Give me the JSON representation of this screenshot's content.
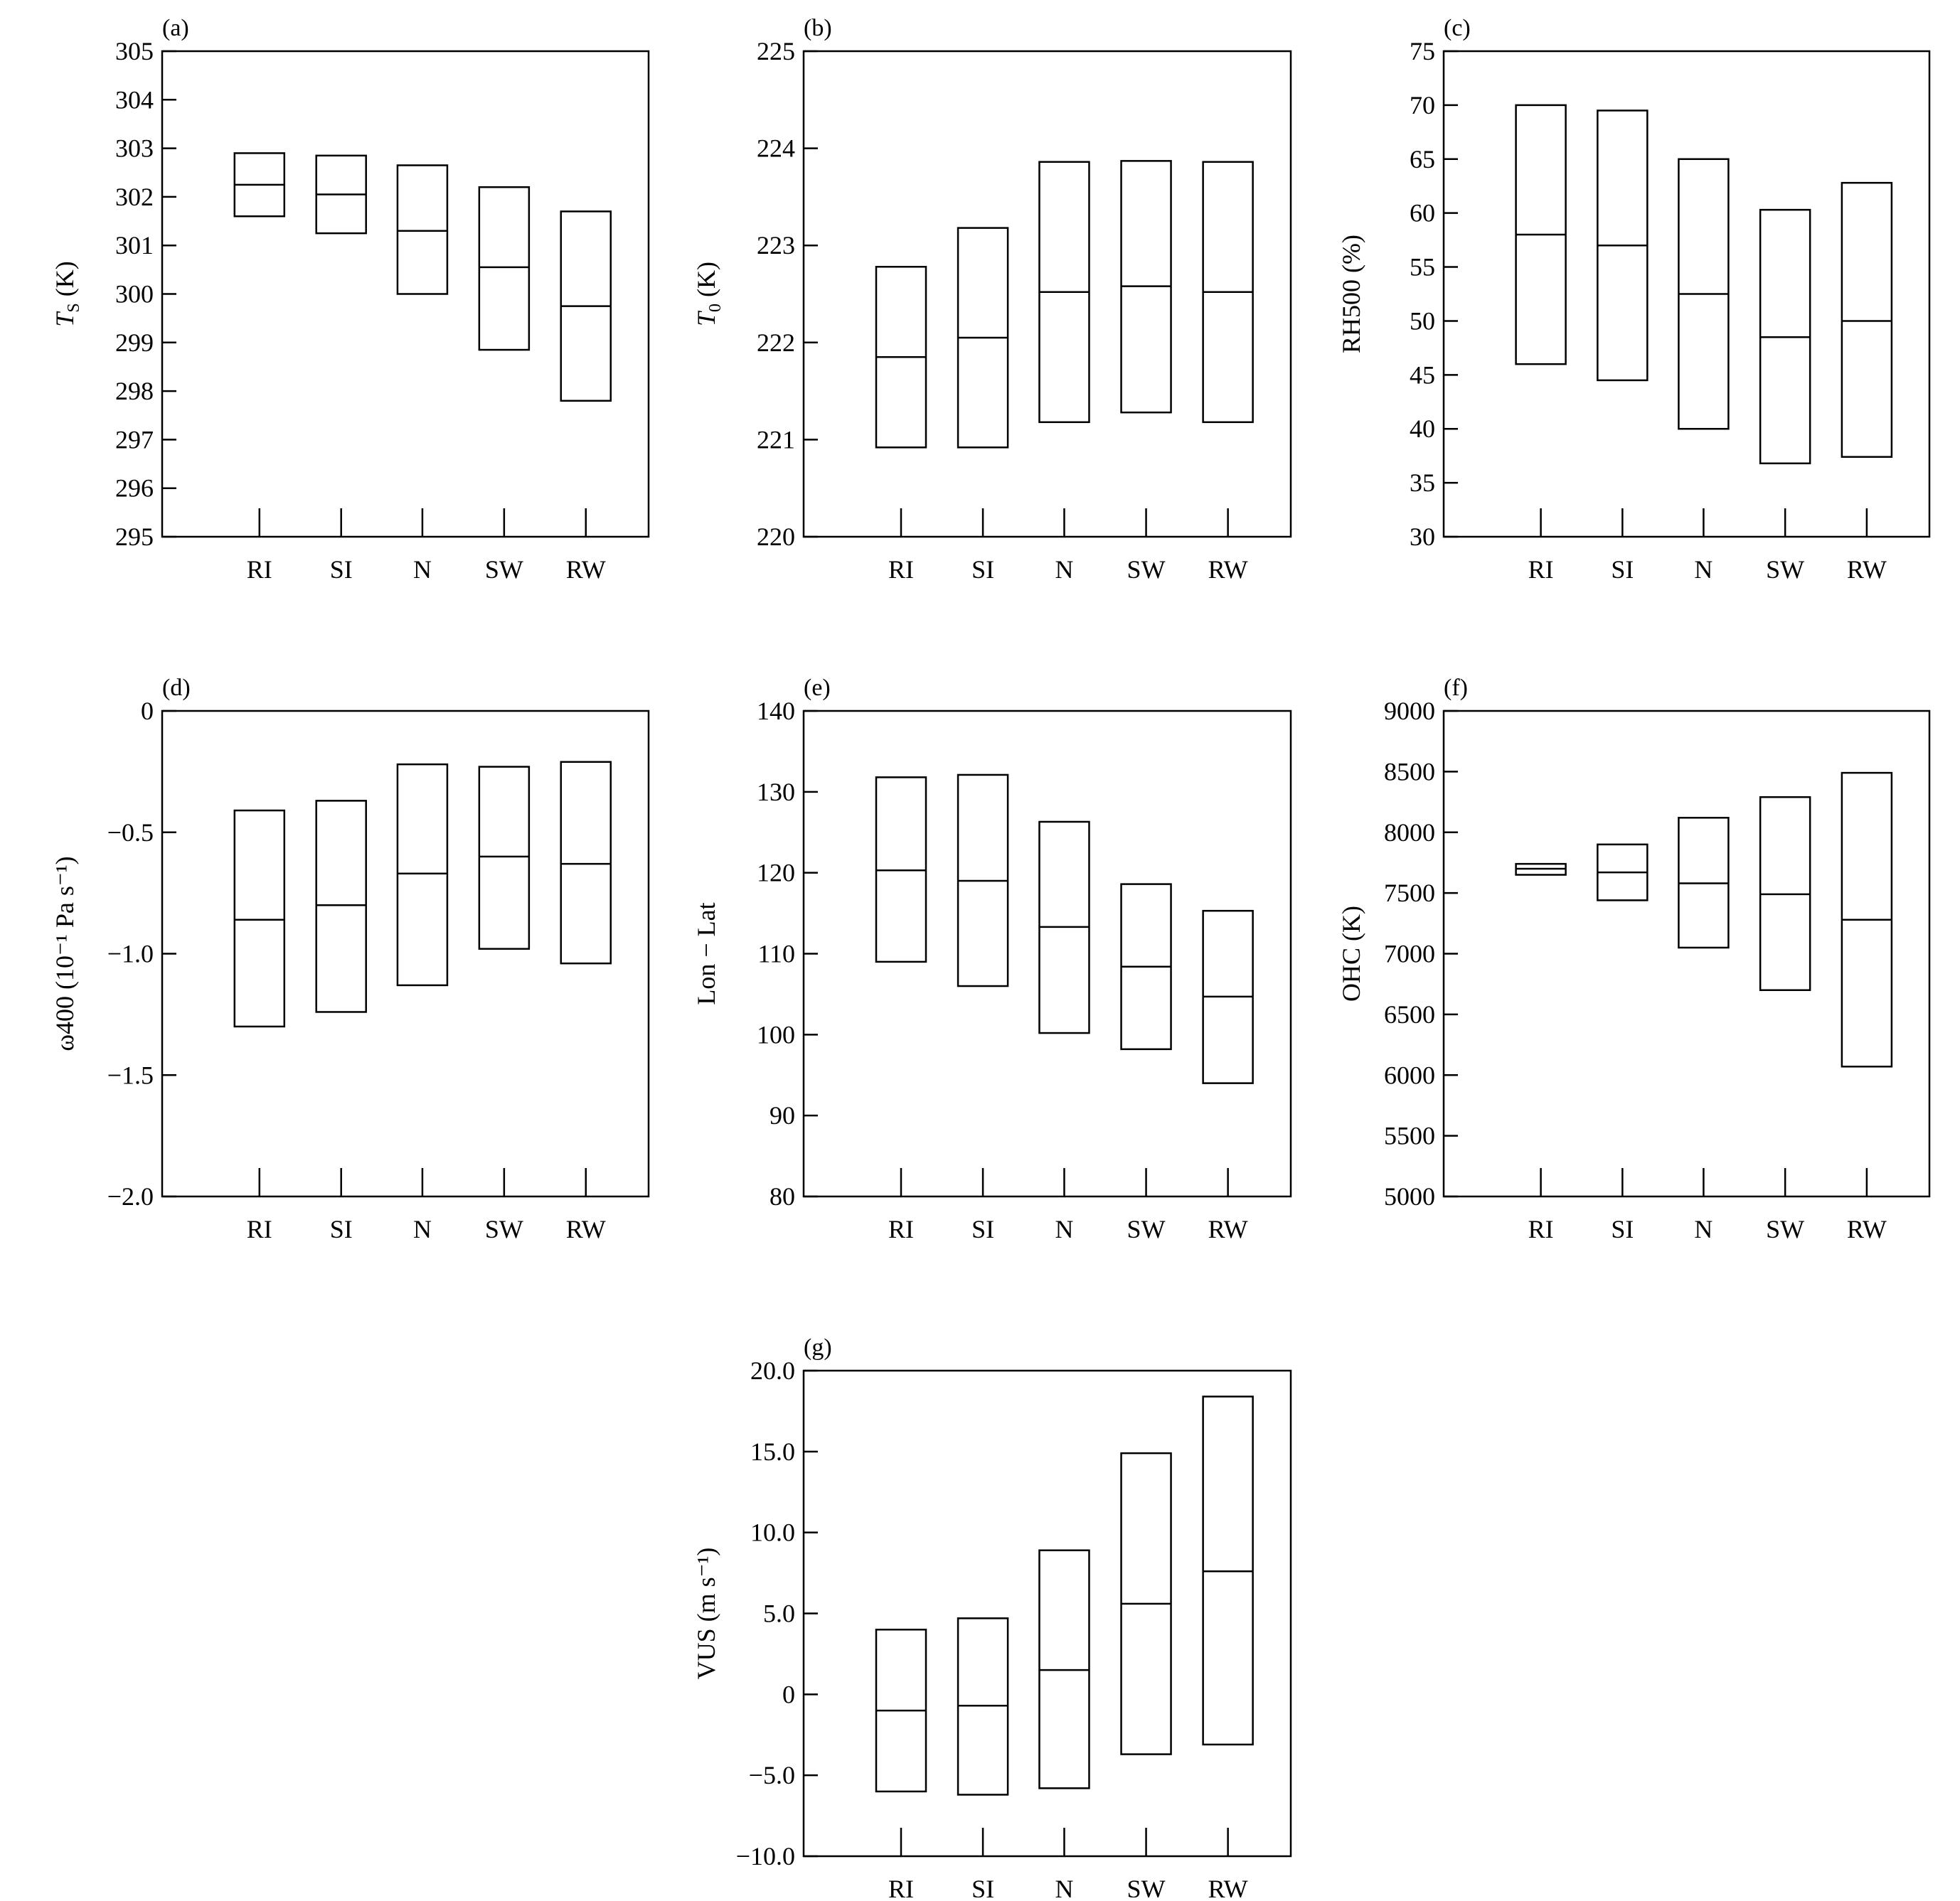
{
  "chart_data": [
    {
      "type": "box",
      "panel_label": "(a)",
      "ylabel": {
        "symbol": "T",
        "subscript": "S",
        "unit": " (K)"
      },
      "categories": [
        "RI",
        "SI",
        "N",
        "SW",
        "RW"
      ],
      "ylim": [
        295,
        305
      ],
      "yticks": [
        "295",
        "296",
        "297",
        "298",
        "299",
        "300",
        "301",
        "302",
        "303",
        "304",
        "305"
      ],
      "boxes": [
        {
          "low": 301.6,
          "median": 302.25,
          "high": 302.9
        },
        {
          "low": 301.25,
          "median": 302.05,
          "high": 302.85
        },
        {
          "low": 300.0,
          "median": 301.3,
          "high": 302.65
        },
        {
          "low": 298.85,
          "median": 300.55,
          "high": 302.2
        },
        {
          "low": 297.8,
          "median": 299.75,
          "high": 301.7
        }
      ]
    },
    {
      "type": "box",
      "panel_label": "(b)",
      "ylabel": {
        "symbol": "T",
        "subscript": "0",
        "unit": " (K)"
      },
      "categories": [
        "RI",
        "SI",
        "N",
        "SW",
        "RW"
      ],
      "ylim": [
        220,
        225
      ],
      "yticks": [
        "220",
        "221",
        "222",
        "223",
        "224",
        "225"
      ],
      "boxes": [
        {
          "low": 220.92,
          "median": 221.85,
          "high": 222.78
        },
        {
          "low": 220.92,
          "median": 222.05,
          "high": 223.18
        },
        {
          "low": 221.18,
          "median": 222.52,
          "high": 223.86
        },
        {
          "low": 221.28,
          "median": 222.58,
          "high": 223.87
        },
        {
          "low": 221.18,
          "median": 222.52,
          "high": 223.86
        }
      ]
    },
    {
      "type": "box",
      "panel_label": "(c)",
      "ylabel": {
        "text": "RH500 (%)"
      },
      "categories": [
        "RI",
        "SI",
        "N",
        "SW",
        "RW"
      ],
      "ylim": [
        30,
        75
      ],
      "yticks": [
        "30",
        "35",
        "40",
        "45",
        "50",
        "55",
        "60",
        "65",
        "70",
        "75"
      ],
      "boxes": [
        {
          "low": 46.0,
          "median": 58.0,
          "high": 70.0
        },
        {
          "low": 44.5,
          "median": 57.0,
          "high": 69.5
        },
        {
          "low": 40.0,
          "median": 52.5,
          "high": 65.0
        },
        {
          "low": 36.8,
          "median": 48.5,
          "high": 60.3
        },
        {
          "low": 37.4,
          "median": 50.0,
          "high": 62.8
        }
      ]
    },
    {
      "type": "box",
      "panel_label": "(d)",
      "ylabel": {
        "text": "ω400 (10⁻¹ Pa s⁻¹)"
      },
      "categories": [
        "RI",
        "SI",
        "N",
        "SW",
        "RW"
      ],
      "ylim": [
        -2.0,
        0
      ],
      "yticks": [
        "−2.0",
        "−1.5",
        "−1.0",
        "−0.5",
        "0"
      ],
      "boxes": [
        {
          "low": -1.3,
          "median": -0.86,
          "high": -0.41
        },
        {
          "low": -1.24,
          "median": -0.8,
          "high": -0.37
        },
        {
          "low": -1.13,
          "median": -0.67,
          "high": -0.22
        },
        {
          "low": -0.98,
          "median": -0.6,
          "high": -0.23
        },
        {
          "low": -1.04,
          "median": -0.63,
          "high": -0.21
        }
      ]
    },
    {
      "type": "box",
      "panel_label": "(e)",
      "ylabel": {
        "text": "Lon − Lat"
      },
      "categories": [
        "RI",
        "SI",
        "N",
        "SW",
        "RW"
      ],
      "ylim": [
        80,
        140
      ],
      "yticks": [
        "80",
        "90",
        "100",
        "110",
        "120",
        "130",
        "140"
      ],
      "boxes": [
        {
          "low": 109.0,
          "median": 120.3,
          "high": 131.8
        },
        {
          "low": 106.0,
          "median": 119.0,
          "high": 132.1
        },
        {
          "low": 100.2,
          "median": 113.3,
          "high": 126.3
        },
        {
          "low": 98.2,
          "median": 108.4,
          "high": 118.6
        },
        {
          "low": 94.0,
          "median": 104.7,
          "high": 115.3
        }
      ]
    },
    {
      "type": "box",
      "panel_label": "(f)",
      "ylabel": {
        "text": "OHC (K)"
      },
      "categories": [
        "RI",
        "SI",
        "N",
        "SW",
        "RW"
      ],
      "ylim": [
        5000,
        9000
      ],
      "yticks": [
        "5000",
        "5500",
        "6000",
        "6500",
        "7000",
        "7500",
        "8000",
        "8500",
        "9000"
      ],
      "boxes": [
        {
          "low": 7650,
          "median": 7700,
          "high": 7740
        },
        {
          "low": 7440,
          "median": 7670,
          "high": 7900
        },
        {
          "low": 7050,
          "median": 7580,
          "high": 8120
        },
        {
          "low": 6700,
          "median": 7490,
          "high": 8290
        },
        {
          "low": 6070,
          "median": 7280,
          "high": 8490
        }
      ]
    },
    {
      "type": "box",
      "panel_label": "(g)",
      "ylabel": {
        "text": "VUS (m s⁻¹)"
      },
      "categories": [
        "RI",
        "SI",
        "N",
        "SW",
        "RW"
      ],
      "ylim": [
        -10,
        20
      ],
      "yticks": [
        "−10.0",
        "−5.0",
        "0",
        "5.0",
        "10.0",
        "15.0",
        "20.0"
      ],
      "boxes": [
        {
          "low": -6.0,
          "median": -1.0,
          "high": 4.0
        },
        {
          "low": -6.2,
          "median": -0.7,
          "high": 4.7
        },
        {
          "low": -5.8,
          "median": 1.5,
          "high": 8.9
        },
        {
          "low": -3.7,
          "median": 5.6,
          "high": 14.9
        },
        {
          "low": -3.1,
          "median": 7.6,
          "high": 18.4
        }
      ]
    }
  ]
}
